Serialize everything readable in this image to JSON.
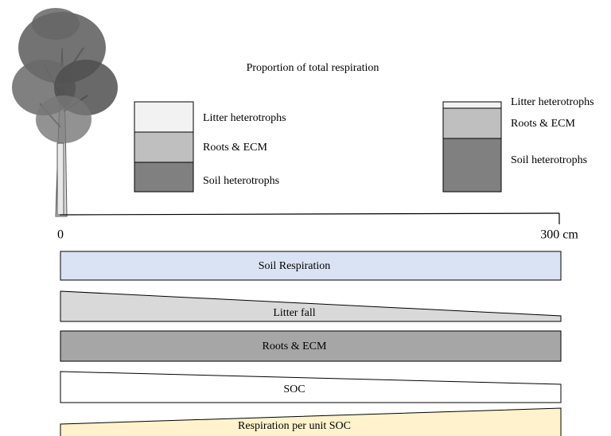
{
  "title": "Proportion of total respiration",
  "stacks": [
    {
      "labels": [
        "Litter heterotrophs",
        "Roots & ECM",
        "Soil heterotrophs"
      ]
    },
    {
      "labels": [
        "Litter heterotrophs",
        "Roots & ECM",
        "Soil heterotrophs"
      ]
    }
  ],
  "axis": {
    "start_label": "0",
    "end_label": "300 cm"
  },
  "bands": [
    {
      "label": "Soil Respiration"
    },
    {
      "label": "Litter fall"
    },
    {
      "label": "Roots & ECM"
    },
    {
      "label": "SOC"
    },
    {
      "label": "Respiration per unit SOC"
    }
  ]
}
